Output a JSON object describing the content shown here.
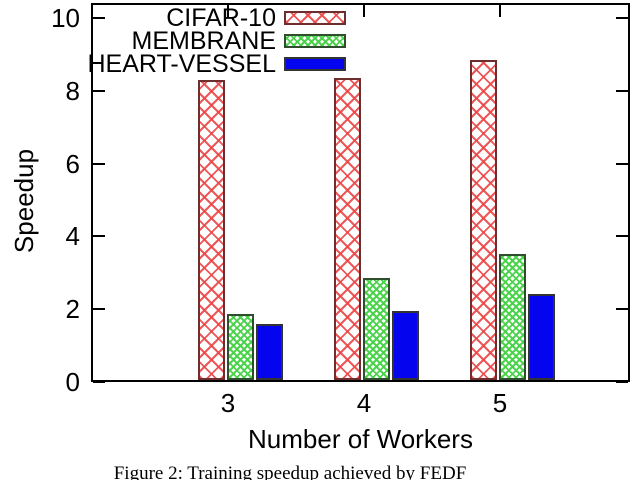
{
  "figure": {
    "caption": "Figure 2: Training speedup achieved by FEDF"
  },
  "chart_data": {
    "type": "bar",
    "title": "",
    "xlabel": "Number of Workers",
    "ylabel": "Speedup",
    "categories": [
      "3",
      "4",
      "5"
    ],
    "series": [
      {
        "name": "CIFAR-10",
        "pattern": "crosshatch-coarse",
        "color": "#e03434",
        "values": [
          8.25,
          8.3,
          8.8
        ]
      },
      {
        "name": "MEMBRANE",
        "pattern": "crosshatch-fine",
        "color": "#4ad34a",
        "values": [
          1.8,
          2.8,
          3.45
        ]
      },
      {
        "name": "HEART-VESSEL",
        "pattern": "solid",
        "color": "#0000ee",
        "values": [
          1.55,
          1.9,
          2.35
        ]
      }
    ],
    "ylim": [
      0,
      10
    ],
    "yticks": [
      0,
      2,
      4,
      6,
      8,
      10
    ],
    "legend_position": "top-left-inside",
    "grid": false
  }
}
